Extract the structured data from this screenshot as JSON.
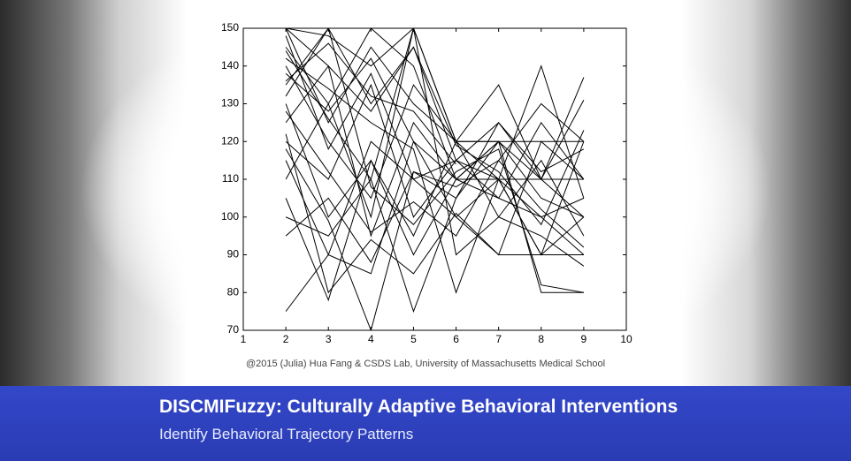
{
  "chart_data": {
    "type": "line",
    "color": "#000000",
    "x": [
      2,
      3,
      4,
      5,
      6,
      7,
      8,
      9
    ],
    "xlim": [
      1,
      10
    ],
    "xticks": [
      1,
      2,
      3,
      4,
      5,
      6,
      7,
      8,
      9,
      10
    ],
    "ylim": [
      70,
      150
    ],
    "yticks": [
      70,
      80,
      90,
      100,
      110,
      120,
      130,
      140,
      150
    ],
    "series": [
      {
        "values": [
          150,
          148,
          140,
          150,
          120,
          120,
          120,
          120
        ]
      },
      {
        "values": [
          145,
          130,
          150,
          140,
          110,
          120,
          110,
          100
        ]
      },
      {
        "values": [
          140,
          120,
          105,
          135,
          120,
          135,
          110,
          131
        ]
      },
      {
        "values": [
          135,
          150,
          130,
          145,
          115,
          110,
          140,
          105
        ]
      },
      {
        "values": [
          130,
          100,
          115,
          95,
          120,
          110,
          90,
          120
        ]
      },
      {
        "values": [
          125,
          140,
          95,
          125,
          110,
          105,
          100,
          90
        ]
      },
      {
        "values": [
          120,
          110,
          135,
          100,
          115,
          125,
          110,
          137
        ]
      },
      {
        "values": [
          115,
          90,
          120,
          110,
          100,
          90,
          120,
          110
        ]
      },
      {
        "values": [
          150,
          125,
          145,
          130,
          120,
          100,
          115,
          95
        ]
      },
      {
        "values": [
          100,
          95,
          110,
          75,
          105,
          120,
          80,
          80
        ]
      },
      {
        "values": [
          75,
          90,
          85,
          120,
          100,
          110,
          100,
          105
        ]
      },
      {
        "values": [
          110,
          130,
          100,
          150,
          90,
          100,
          95,
          87
        ]
      },
      {
        "values": [
          105,
          78,
          115,
          90,
          110,
          120,
          105,
          100
        ]
      },
      {
        "values": [
          148,
          118,
          138,
          110,
          115,
          105,
          125,
          110
        ]
      },
      {
        "values": [
          95,
          105,
          88,
          112,
          108,
          115,
          102,
          92
        ]
      },
      {
        "values": [
          138,
          128,
          142,
          120,
          110,
          110,
          110,
          110
        ]
      },
      {
        "values": [
          128,
          112,
          96,
          104,
          95,
          115,
          130,
          120
        ]
      },
      {
        "values": [
          142,
          134,
          125,
          118,
          80,
          110,
          90,
          100
        ]
      },
      {
        "values": [
          132,
          150,
          108,
          98,
          112,
          118,
          82,
          80
        ]
      },
      {
        "values": [
          122,
          80,
          94,
          85,
          101,
          90,
          90,
          90
        ]
      },
      {
        "values": [
          144,
          126,
          110,
          150,
          120,
          120,
          null,
          null
        ]
      },
      {
        "values": [
          136,
          146,
          132,
          128,
          114,
          null,
          null,
          null
        ]
      },
      {
        "values": [
          118,
          99,
          70,
          112,
          105,
          125,
          112,
          118
        ]
      },
      {
        "values": [
          150,
          140,
          128,
          145,
          119,
          112,
          98,
          123
        ]
      }
    ]
  },
  "caption": "@2015 (Julia) Hua Fang & CSDS Lab, University of Massachusetts Medical School",
  "banner": {
    "title": "DISCMIFuzzy: Culturally Adaptive Behavioral Interventions",
    "subtitle": "Identify Behavioral Trajectory Patterns"
  }
}
